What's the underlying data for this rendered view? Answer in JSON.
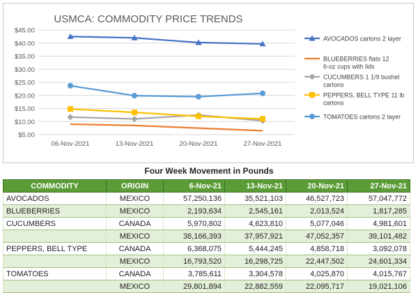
{
  "chart_data": {
    "type": "line",
    "title": "USMCA: COMMODITY PRICE TRENDS",
    "categories": [
      "06-Nov-2021",
      "13-Nov-2021",
      "20-Nov-2021",
      "27-Nov-2021"
    ],
    "y_ticks": [
      "$5.00",
      "$10.00",
      "$15.00",
      "$20.00",
      "$25.00",
      "$30.00",
      "$35.00",
      "$40.00",
      "$45.00"
    ],
    "ylim": [
      5,
      45
    ],
    "grid": true,
    "legend_position": "right",
    "series": [
      {
        "name": "AVOCADOS cartons 2 layer",
        "values": [
          42.5,
          42.0,
          40.2,
          39.7
        ],
        "color": "#4472c4",
        "marker": "triangle"
      },
      {
        "name": "BLUEBERRIES flats 12 6-oz cups with lids",
        "values": [
          9.0,
          8.5,
          7.5,
          6.5
        ],
        "color": "#ed7d31",
        "marker": "none"
      },
      {
        "name": "CUCUMBERS 1 1/9 bushel cartons",
        "values": [
          11.7,
          11.0,
          12.5,
          10.3
        ],
        "color": "#a5a5a5",
        "marker": "diamond"
      },
      {
        "name": "PEPPERS, BELL TYPE 11 lb cartons",
        "values": [
          14.8,
          13.5,
          12.0,
          11.0
        ],
        "color": "#ffc000",
        "marker": "square"
      },
      {
        "name": "TOMATOES cartons 2 layer",
        "values": [
          23.7,
          19.9,
          19.5,
          20.8
        ],
        "color": "#5b9bd5",
        "marker": "circle"
      }
    ]
  },
  "table": {
    "title": "Four Week Movement in Pounds",
    "headers": [
      "COMMODITY",
      "ORIGIN",
      "6-Nov-21",
      "13-Nov-21",
      "20-Nov-21",
      "27-Nov-21"
    ],
    "rows": [
      {
        "commodity": "AVOCADOS",
        "origin": "MEXICO",
        "values": [
          "57,250,136",
          "35,521,103",
          "46,527,723",
          "57,047,772"
        ]
      },
      {
        "commodity": "BLUEBERRIES",
        "origin": "MEXICO",
        "values": [
          "2,193,634",
          "2,545,161",
          "2,013,524",
          "1,817,285"
        ]
      },
      {
        "commodity": "CUCUMBERS",
        "origin": "CANADA",
        "values": [
          "5,970,802",
          "4,623,810",
          "5,077,046",
          "4,981,601"
        ]
      },
      {
        "commodity": "",
        "origin": "MEXICO",
        "values": [
          "38,166,393",
          "37,957,921",
          "47,052,357",
          "39,101,482"
        ]
      },
      {
        "commodity": "PEPPERS, BELL TYPE",
        "origin": "CANADA",
        "values": [
          "6,368,075",
          "5,444,245",
          "4,858,718",
          "3,092,078"
        ]
      },
      {
        "commodity": "",
        "origin": "MEXICO",
        "values": [
          "16,793,520",
          "16,298,725",
          "22,447,502",
          "24,601,334"
        ]
      },
      {
        "commodity": "TOMATOES",
        "origin": "CANADA",
        "values": [
          "3,785,611",
          "3,304,578",
          "4,025,870",
          "4,015,767"
        ]
      },
      {
        "commodity": "",
        "origin": "MEXICO",
        "values": [
          "29,801,894",
          "22,882,559",
          "22,095,717",
          "19,021,106"
        ]
      }
    ]
  }
}
